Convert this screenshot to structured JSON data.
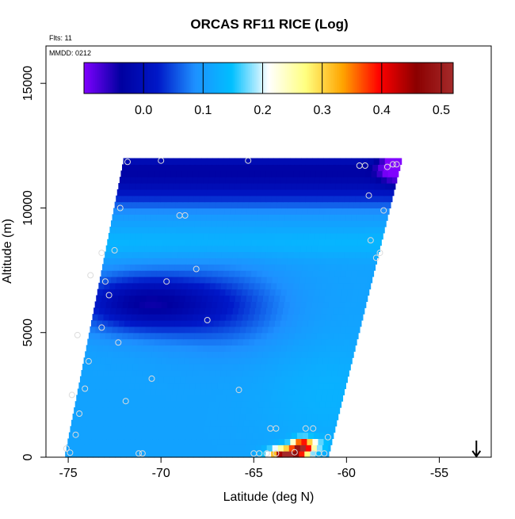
{
  "chart_data": {
    "type": "heatmap",
    "title": "ORCAS RF11 RICE (Log)",
    "annotations": {
      "flights": "Flts: 11",
      "mmdd": "MMDD: 0212"
    },
    "xlabel": "Latitude (deg N)",
    "ylabel": "Altitude (m)",
    "xlim": [
      -76.2,
      -52.2
    ],
    "ylim": [
      0,
      16500
    ],
    "x_ticks": [
      -75,
      -70,
      -65,
      -60,
      -55
    ],
    "x_tick_labels": [
      "-75",
      "-70",
      "-65",
      "-60",
      "-55"
    ],
    "y_ticks": [
      0,
      5000,
      10000,
      15000
    ],
    "y_tick_labels": [
      "0",
      "5000",
      "10000",
      "15000"
    ],
    "colorbar": {
      "range": [
        -0.1,
        0.52
      ],
      "ticks": [
        0.0,
        0.1,
        0.2,
        0.3,
        0.4,
        0.5
      ],
      "tick_labels": [
        "0.0",
        "0.1",
        "0.2",
        "0.3",
        "0.4",
        "0.5"
      ],
      "colors": [
        "#8000ff",
        "#0000a0",
        "#0018c8",
        "#1e90ff",
        "#00bfff",
        "#ffffff",
        "#ffff80",
        "#ffa500",
        "#ff0000",
        "#8b0000",
        "#a52a2a"
      ]
    },
    "arrow_marker": {
      "x": -53.0,
      "direction": "down"
    },
    "domain": {
      "lat_min_bottom": -75.2,
      "lat_max_bottom": -61.0,
      "lat_min_top": -72.0,
      "lat_max_top": -57.0,
      "alt_max": 12000
    },
    "field_value_notes": "background ~0.1; dark bands near 12000 m and 5500-7000 m; light band near 8500 m; high values near surface at -63 lat",
    "points": [
      {
        "lat": -71.8,
        "alt": 11850
      },
      {
        "lat": -70.0,
        "alt": 11900
      },
      {
        "lat": -65.3,
        "alt": 11900
      },
      {
        "lat": -59.3,
        "alt": 11700
      },
      {
        "lat": -59.0,
        "alt": 11700
      },
      {
        "lat": -57.8,
        "alt": 11650
      },
      {
        "lat": -57.5,
        "alt": 11750
      },
      {
        "lat": -57.3,
        "alt": 11750
      },
      {
        "lat": -72.2,
        "alt": 10000
      },
      {
        "lat": -69.0,
        "alt": 9700
      },
      {
        "lat": -68.7,
        "alt": 9700
      },
      {
        "lat": -58.8,
        "alt": 10500
      },
      {
        "lat": -58.0,
        "alt": 9900
      },
      {
        "lat": -58.7,
        "alt": 8700
      },
      {
        "lat": -58.2,
        "alt": 8200
      },
      {
        "lat": -58.4,
        "alt": 8000
      },
      {
        "lat": -73.2,
        "alt": 8200
      },
      {
        "lat": -72.5,
        "alt": 8300
      },
      {
        "lat": -68.1,
        "alt": 7550
      },
      {
        "lat": -73.8,
        "alt": 7300
      },
      {
        "lat": -73.0,
        "alt": 7050
      },
      {
        "lat": -69.7,
        "alt": 7050
      },
      {
        "lat": -72.8,
        "alt": 6500
      },
      {
        "lat": -67.5,
        "alt": 5500
      },
      {
        "lat": -73.2,
        "alt": 5200
      },
      {
        "lat": -74.5,
        "alt": 4900
      },
      {
        "lat": -72.3,
        "alt": 4600
      },
      {
        "lat": -73.9,
        "alt": 3850
      },
      {
        "lat": -70.5,
        "alt": 3150
      },
      {
        "lat": -74.1,
        "alt": 2750
      },
      {
        "lat": -65.8,
        "alt": 2700
      },
      {
        "lat": -74.8,
        "alt": 2500
      },
      {
        "lat": -71.9,
        "alt": 2250
      },
      {
        "lat": -74.4,
        "alt": 1750
      },
      {
        "lat": -64.1,
        "alt": 1150
      },
      {
        "lat": -63.8,
        "alt": 1150
      },
      {
        "lat": -62.2,
        "alt": 1150
      },
      {
        "lat": -61.8,
        "alt": 1150
      },
      {
        "lat": -74.6,
        "alt": 900
      },
      {
        "lat": -61.0,
        "alt": 800
      },
      {
        "lat": -75.1,
        "alt": 350
      },
      {
        "lat": -74.9,
        "alt": 180
      },
      {
        "lat": -71.2,
        "alt": 150
      },
      {
        "lat": -71.0,
        "alt": 150
      },
      {
        "lat": -65.0,
        "alt": 150
      },
      {
        "lat": -64.7,
        "alt": 150
      },
      {
        "lat": -64.3,
        "alt": 150
      },
      {
        "lat": -63.8,
        "alt": 150
      },
      {
        "lat": -62.8,
        "alt": 200
      },
      {
        "lat": -61.8,
        "alt": 150
      },
      {
        "lat": -61.5,
        "alt": 150
      },
      {
        "lat": -61.2,
        "alt": 150
      }
    ]
  }
}
